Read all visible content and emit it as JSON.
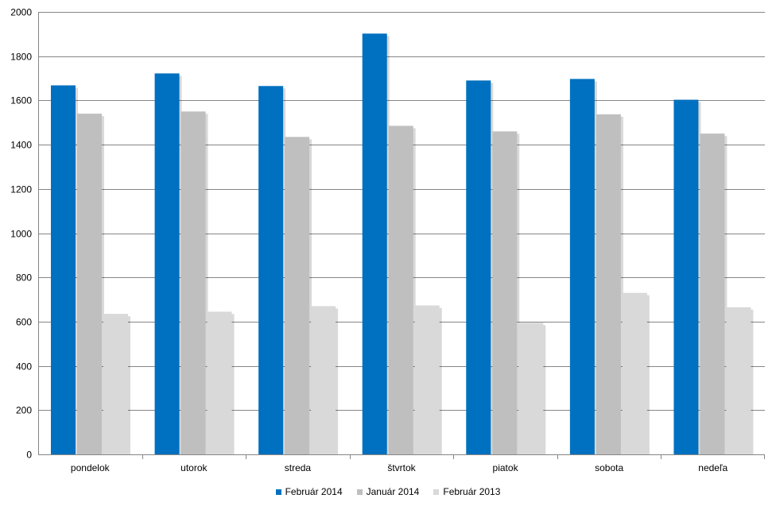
{
  "chart_data": {
    "type": "bar",
    "categories": [
      "pondelok",
      "utorok",
      "streda",
      "štvrtok",
      "piatok",
      "sobota",
      "nedeľa"
    ],
    "series": [
      {
        "name": "Február 2014",
        "color": "#0070c0",
        "values": [
          1668,
          1722,
          1665,
          1902,
          1690,
          1697,
          1603
        ]
      },
      {
        "name": "Január 2014",
        "color": "#bfbfbf",
        "values": [
          1540,
          1550,
          1435,
          1485,
          1460,
          1537,
          1450
        ]
      },
      {
        "name": "Február 2013",
        "color": "#d9d9d9",
        "values": [
          635,
          645,
          670,
          673,
          595,
          730,
          665
        ]
      }
    ],
    "yticks": [
      "0",
      "200",
      "400",
      "600",
      "800",
      "1000",
      "1200",
      "1400",
      "1600",
      "1800",
      "2000"
    ],
    "ylim": [
      0,
      2000
    ],
    "grid": true,
    "legend_position": "bottom"
  }
}
